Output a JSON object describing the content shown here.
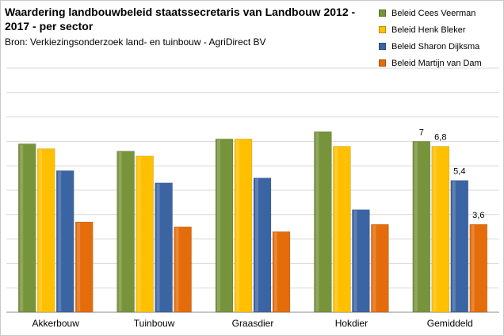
{
  "chart_data": {
    "type": "bar",
    "title": "Waardering landbouwbeleid staatssecretaris van Landbouw 2012 - 2017 - per sector",
    "subtitle": "Bron: Verkiezingsonderzoek land- en tuinbouw - AgriDirect BV",
    "categories": [
      "Akkerbouw",
      "Tuinbouw",
      "Graasdier",
      "Hokdier",
      "Gemiddeld"
    ],
    "ylim": [
      0,
      10
    ],
    "grid": true,
    "legend_position": "top-right",
    "series": [
      {
        "name": "Beleid Cees Veerman",
        "color": "#77933c",
        "values": [
          6.9,
          6.6,
          7.1,
          7.4,
          7.0
        ]
      },
      {
        "name": "Beleid Henk Bleker",
        "color": "#ffc000",
        "values": [
          6.7,
          6.4,
          7.1,
          6.8,
          6.8
        ]
      },
      {
        "name": "Beleid Sharon Dijksma",
        "color": "#3b64a3",
        "values": [
          5.8,
          5.3,
          5.5,
          4.2,
          5.4
        ]
      },
      {
        "name": "Beleid Martijn van Dam",
        "color": "#e46c0a",
        "values": [
          3.7,
          3.5,
          3.3,
          3.6,
          3.6
        ]
      }
    ],
    "data_labels": {
      "category": "Gemiddeld",
      "values": [
        "7",
        "6,8",
        "5,4",
        "3,6"
      ]
    }
  }
}
